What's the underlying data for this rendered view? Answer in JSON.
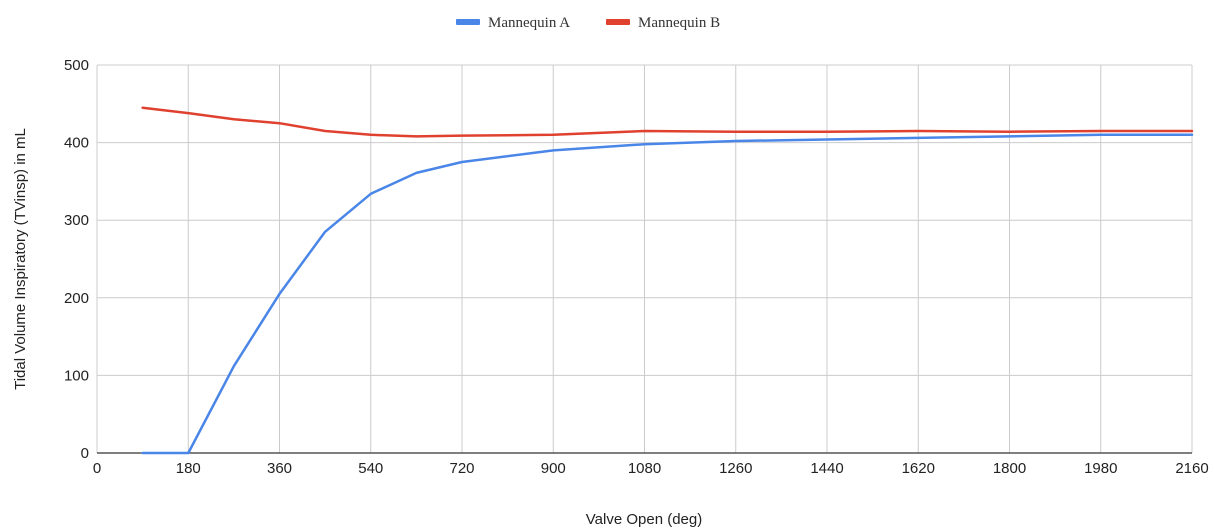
{
  "chart_data": {
    "type": "line",
    "title": "",
    "xlabel": "Valve Open (deg)",
    "ylabel": "Tidal Volume Inspiratory (TVinsp) in mL",
    "xlim": [
      0,
      2160
    ],
    "ylim": [
      0,
      500
    ],
    "x_ticks": [
      0,
      180,
      360,
      540,
      720,
      900,
      1080,
      1260,
      1440,
      1620,
      1800,
      1980,
      2160
    ],
    "y_ticks": [
      0,
      100,
      200,
      300,
      400,
      500
    ],
    "grid": true,
    "legend_position": "top",
    "series": [
      {
        "name": "Mannequin A",
        "color": "#4a86e8",
        "points": [
          [
            90,
            0
          ],
          [
            180,
            0
          ],
          [
            270,
            112
          ],
          [
            360,
            205
          ],
          [
            450,
            285
          ],
          [
            540,
            334
          ],
          [
            630,
            361
          ],
          [
            720,
            375
          ],
          [
            900,
            390
          ],
          [
            1080,
            398
          ],
          [
            1260,
            402
          ],
          [
            1440,
            404
          ],
          [
            1620,
            406
          ],
          [
            1800,
            408
          ],
          [
            1980,
            410
          ],
          [
            2160,
            410
          ]
        ]
      },
      {
        "name": "Mannequin B",
        "color": "#e0412f",
        "points": [
          [
            90,
            445
          ],
          [
            180,
            438
          ],
          [
            270,
            430
          ],
          [
            360,
            425
          ],
          [
            450,
            415
          ],
          [
            540,
            410
          ],
          [
            630,
            408
          ],
          [
            720,
            409
          ],
          [
            900,
            410
          ],
          [
            1080,
            415
          ],
          [
            1260,
            414
          ],
          [
            1440,
            414
          ],
          [
            1620,
            415
          ],
          [
            1800,
            414
          ],
          [
            1980,
            415
          ],
          [
            2160,
            415
          ]
        ]
      }
    ]
  }
}
